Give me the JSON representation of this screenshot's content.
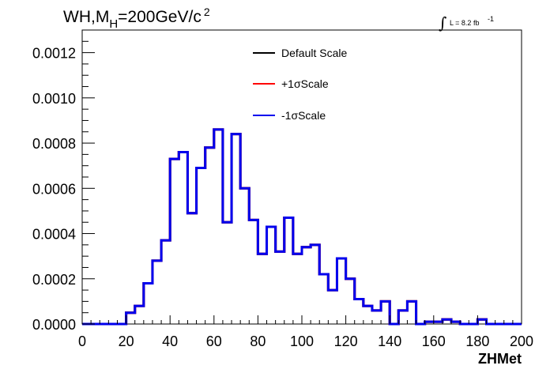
{
  "title_parts": {
    "prefix": "WH,M",
    "sub": "H",
    "mid": "=200GeV/c",
    "sup": "2"
  },
  "lumi_parts": {
    "integral": "∫",
    "text": "L = 8.2 fb",
    "sup": "-1"
  },
  "chart_data": {
    "type": "line",
    "style": "step-histogram",
    "xlabel": "ZHMet",
    "ylabel": "",
    "xlim": [
      0,
      200
    ],
    "ylim": [
      0,
      0.0013
    ],
    "x_ticks": [
      "0",
      "20",
      "40",
      "60",
      "80",
      "100",
      "120",
      "140",
      "160",
      "180",
      "200"
    ],
    "y_ticks": [
      "0.0000",
      "0.0002",
      "0.0004",
      "0.0006",
      "0.0008",
      "0.0010",
      "0.0012"
    ],
    "grid": false,
    "legend_position": "top-center",
    "bin_width": 4,
    "bin_edges_start": 0,
    "series": [
      {
        "name": "Default Scale",
        "color": "#000000",
        "values": [
          0,
          0,
          0,
          0,
          0,
          5e-05,
          8e-05,
          0.00018,
          0.00028,
          0.00037,
          0.00073,
          0.00076,
          0.00049,
          0.00069,
          0.00078,
          0.00086,
          0.00045,
          0.00084,
          0.0006,
          0.00046,
          0.00031,
          0.00043,
          0.00032,
          0.00047,
          0.00031,
          0.00034,
          0.00035,
          0.00022,
          0.00015,
          0.00029,
          0.0002,
          0.00011,
          8e-05,
          6e-05,
          0.0001,
          0,
          6e-05,
          0.0001,
          0,
          1e-05,
          1e-05,
          2e-05,
          1e-05,
          0,
          0,
          2e-05,
          0,
          0,
          0,
          0,
          0
        ]
      },
      {
        "name": "+1σScale",
        "color": "#ff0000",
        "values": [
          0,
          0,
          0,
          0,
          0,
          5e-05,
          8e-05,
          0.00018,
          0.00028,
          0.00037,
          0.00073,
          0.00076,
          0.00049,
          0.00069,
          0.00078,
          0.00086,
          0.00045,
          0.00084,
          0.0006,
          0.00046,
          0.00031,
          0.00043,
          0.00032,
          0.00047,
          0.00031,
          0.00034,
          0.00035,
          0.00022,
          0.00015,
          0.00029,
          0.0002,
          0.00011,
          8e-05,
          6e-05,
          0.0001,
          0,
          6e-05,
          0.0001,
          0,
          1e-05,
          1e-05,
          2e-05,
          1e-05,
          0,
          0,
          2e-05,
          0,
          0,
          0,
          0,
          0
        ]
      },
      {
        "name": "-1σScale",
        "color": "#0000ee",
        "values": [
          0,
          0,
          0,
          0,
          0,
          5e-05,
          8e-05,
          0.00018,
          0.00028,
          0.00037,
          0.00073,
          0.00076,
          0.00049,
          0.00069,
          0.00078,
          0.00086,
          0.00045,
          0.00084,
          0.0006,
          0.00046,
          0.00031,
          0.00043,
          0.00032,
          0.00047,
          0.00031,
          0.00034,
          0.00035,
          0.00022,
          0.00015,
          0.00029,
          0.0002,
          0.00011,
          8e-05,
          6e-05,
          0.0001,
          0,
          6e-05,
          0.0001,
          0,
          1e-05,
          1e-05,
          2e-05,
          1e-05,
          0,
          0,
          2e-05,
          0,
          0,
          0,
          0,
          0
        ]
      }
    ]
  }
}
